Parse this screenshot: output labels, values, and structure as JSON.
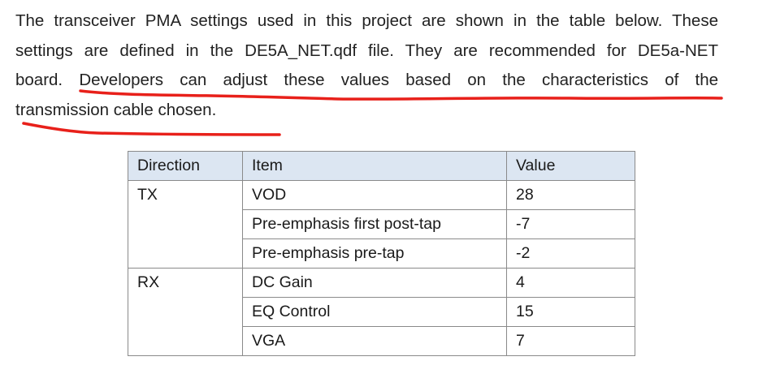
{
  "paragraph": {
    "line1": "The transceiver PMA settings used in this project are shown in the table below. These",
    "line2": "settings are defined in the DE5A_NET.qdf file. They are recommended for DE5a-NET",
    "line3": "board. Developers can adjust these values based on the characteristics of the",
    "line4": "transmission cable chosen."
  },
  "annotation_color": "#e8201a",
  "table": {
    "headers": {
      "direction": "Direction",
      "item": "Item",
      "value": "Value"
    },
    "groups": {
      "tx": {
        "direction": "TX",
        "rows": [
          {
            "item": "VOD",
            "value": "28"
          },
          {
            "item": "Pre-emphasis first post-tap",
            "value": "-7"
          },
          {
            "item": "Pre-emphasis pre-tap",
            "value": "-2"
          }
        ]
      },
      "rx": {
        "direction": "RX",
        "rows": [
          {
            "item": "DC Gain",
            "value": "4"
          },
          {
            "item": "EQ Control",
            "value": "15"
          },
          {
            "item": "VGA",
            "value": "7"
          }
        ]
      }
    }
  }
}
